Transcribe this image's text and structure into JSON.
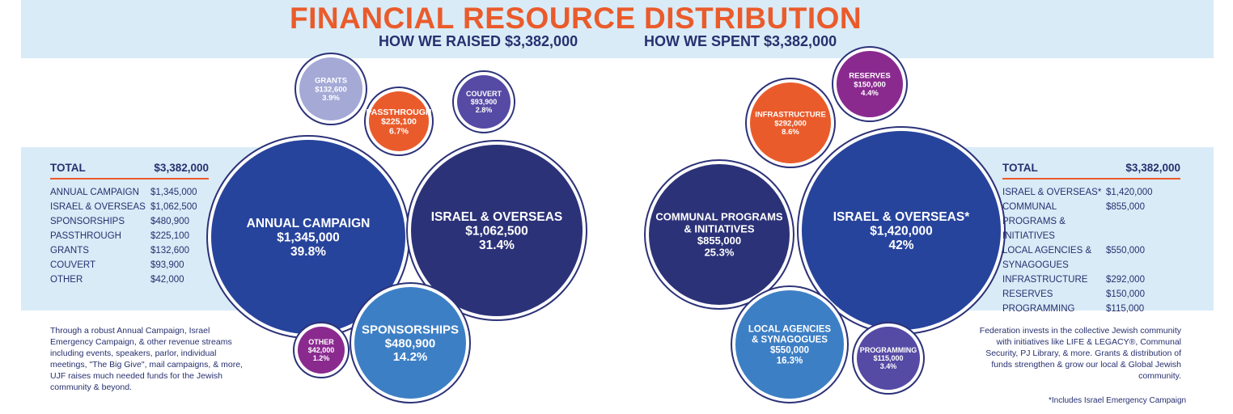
{
  "header": {
    "title_left": "FINANCIAL RESOURCE",
    "title_right": "DISTRIBUTION",
    "subtitle_left": "HOW WE RAISED $3,382,000",
    "subtitle_right": "HOW WE SPENT $3,382,000"
  },
  "left_table": {
    "total_label": "TOTAL",
    "total_value": "$3,382,000",
    "rows": [
      {
        "label": "ANNUAL CAMPAIGN",
        "value": "$1,345,000"
      },
      {
        "label": "ISRAEL & OVERSEAS",
        "value": "$1,062,500"
      },
      {
        "label": "SPONSORSHIPS",
        "value": "$480,900"
      },
      {
        "label": "PASSTHROUGH",
        "value": "$225,100"
      },
      {
        "label": "GRANTS",
        "value": "$132,600"
      },
      {
        "label": "COUVERT",
        "value": "$93,900"
      },
      {
        "label": "OTHER",
        "value": "$42,000"
      }
    ]
  },
  "right_table": {
    "total_label": "TOTAL",
    "total_value": "$3,382,000",
    "rows": [
      {
        "label": "ISRAEL & OVERSEAS*",
        "value": "$1,420,000"
      },
      {
        "label": "COMMUNAL PROGRAMS & INITIATIVES",
        "value": "$855,000"
      },
      {
        "label": "LOCAL AGENCIES & SYNAGOGUES",
        "value": "$550,000"
      },
      {
        "label": "INFRASTRUCTURE",
        "value": "$292,000"
      },
      {
        "label": "RESERVES",
        "value": "$150,000"
      },
      {
        "label": "PROGRAMMING",
        "value": "$115,000"
      }
    ]
  },
  "notes": {
    "left": "Through a robust Annual Campaign, Israel Emergency Campaign, & other revenue streams including events, speakers, parlor, individual meetings, \"The Big Give\", mail campaigns, & more, UJF raises much needed funds for the Jewish community & beyond.",
    "right": "Federation invests in the collective Jewish community with initiatives like LIFE & LEGACY®, Communal Security, PJ Library, & more. Grants & distribution of funds strengthen & grow our local & Global Jewish community.",
    "footnote": "*Includes Israel Emergency Campaign"
  },
  "colors": {
    "navy": "#2c3278",
    "royal": "#27449c",
    "sky": "#3d7fc5",
    "orange": "#ea5b2b",
    "lavender": "#a4a9d6",
    "violet": "#554aa4",
    "magenta": "#8a2a8f",
    "band": "#d9ebf7"
  },
  "chart_data": [
    {
      "type": "bubble",
      "title": "FINANCIAL RESOURCE",
      "subtitle": "HOW WE RAISED $3,382,000",
      "total": 3382000,
      "items": [
        {
          "label": "ANNUAL CAMPAIGN",
          "value": 1345000,
          "value_text": "$1,345,000",
          "percent": 39.8,
          "percent_text": "39.8%",
          "color": "#27449c"
        },
        {
          "label": "ISRAEL & OVERSEAS",
          "value": 1062500,
          "value_text": "$1,062,500",
          "percent": 31.4,
          "percent_text": "31.4%",
          "color": "#2c3278"
        },
        {
          "label": "SPONSORSHIPS",
          "value": 480900,
          "value_text": "$480,900",
          "percent": 14.2,
          "percent_text": "14.2%",
          "color": "#3d7fc5"
        },
        {
          "label": "PASSTHROUGH",
          "value": 225100,
          "value_text": "$225,100",
          "percent": 6.7,
          "percent_text": "6.7%",
          "color": "#ea5b2b"
        },
        {
          "label": "GRANTS",
          "value": 132600,
          "value_text": "$132,600",
          "percent": 3.9,
          "percent_text": "3.9%",
          "color": "#a4a9d6"
        },
        {
          "label": "COUVERT",
          "value": 93900,
          "value_text": "$93,900",
          "percent": 2.8,
          "percent_text": "2.8%",
          "color": "#554aa4"
        },
        {
          "label": "OTHER",
          "value": 42000,
          "value_text": "$42,000",
          "percent": 1.2,
          "percent_text": "1.2%",
          "color": "#8a2a8f"
        }
      ]
    },
    {
      "type": "bubble",
      "title": "DISTRIBUTION",
      "subtitle": "HOW WE SPENT $3,382,000",
      "total": 3382000,
      "items": [
        {
          "label": "ISRAEL & OVERSEAS*",
          "value": 1420000,
          "value_text": "$1,420,000",
          "percent": 42,
          "percent_text": "42%",
          "color": "#27449c"
        },
        {
          "label": "COMMUNAL PROGRAMS & INITIATIVES",
          "value": 855000,
          "value_text": "$855,000",
          "percent": 25.3,
          "percent_text": "25.3%",
          "color": "#2c3278"
        },
        {
          "label": "LOCAL AGENCIES & SYNAGOGUES",
          "value": 550000,
          "value_text": "$550,000",
          "percent": 16.3,
          "percent_text": "16.3%",
          "color": "#3d7fc5"
        },
        {
          "label": "INFRASTRUCTURE",
          "value": 292000,
          "value_text": "$292,000",
          "percent": 8.6,
          "percent_text": "8.6%",
          "color": "#ea5b2b"
        },
        {
          "label": "RESERVES",
          "value": 150000,
          "value_text": "$150,000",
          "percent": 4.4,
          "percent_text": "4.4%",
          "color": "#8a2a8f"
        },
        {
          "label": "PROGRAMMING",
          "value": 115000,
          "value_text": "$115,000",
          "percent": 3.4,
          "percent_text": "3.4%",
          "color": "#554aa4"
        }
      ]
    }
  ]
}
